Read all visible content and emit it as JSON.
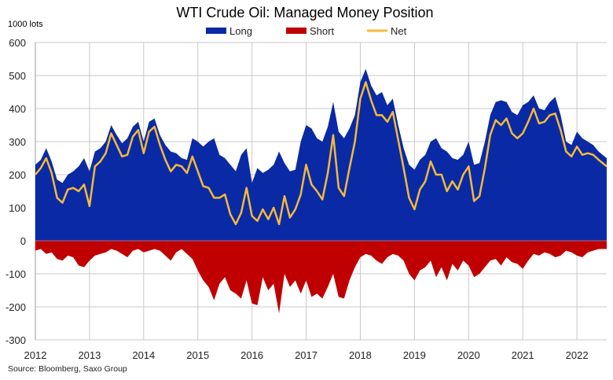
{
  "chart_data": {
    "type": "area",
    "title": "WTI Crude Oil: Managed Money Position",
    "ylabel": "1000 lots",
    "source": "Source: Bloomberg, Saxo Group",
    "ylim": [
      -300,
      600
    ],
    "yticks": [
      -300,
      -200,
      -100,
      0,
      100,
      200,
      300,
      400,
      500,
      600
    ],
    "xlim": [
      2012.0,
      2022.55
    ],
    "xticks": [
      2012,
      2013,
      2014,
      2015,
      2016,
      2017,
      2018,
      2019,
      2020,
      2021,
      2022
    ],
    "grid": true,
    "legend": "top-center",
    "series": [
      {
        "name": "Long",
        "type": "area",
        "color": "#0a2aa5",
        "x": [
          2012.0,
          2012.1,
          2012.2,
          2012.3,
          2012.4,
          2012.5,
          2012.6,
          2012.7,
          2012.8,
          2012.9,
          2013.0,
          2013.1,
          2013.2,
          2013.3,
          2013.4,
          2013.5,
          2013.6,
          2013.7,
          2013.8,
          2013.9,
          2014.0,
          2014.1,
          2014.2,
          2014.3,
          2014.4,
          2014.5,
          2014.6,
          2014.7,
          2014.8,
          2014.9,
          2015.0,
          2015.1,
          2015.2,
          2015.3,
          2015.4,
          2015.5,
          2015.6,
          2015.7,
          2015.8,
          2015.9,
          2016.0,
          2016.1,
          2016.2,
          2016.3,
          2016.4,
          2016.5,
          2016.6,
          2016.7,
          2016.8,
          2016.9,
          2017.0,
          2017.1,
          2017.2,
          2017.3,
          2017.4,
          2017.5,
          2017.6,
          2017.7,
          2017.8,
          2017.9,
          2018.0,
          2018.1,
          2018.2,
          2018.3,
          2018.4,
          2018.5,
          2018.6,
          2018.7,
          2018.8,
          2018.9,
          2019.0,
          2019.1,
          2019.2,
          2019.3,
          2019.4,
          2019.5,
          2019.6,
          2019.7,
          2019.8,
          2019.9,
          2020.0,
          2020.1,
          2020.2,
          2020.3,
          2020.4,
          2020.5,
          2020.6,
          2020.7,
          2020.8,
          2020.9,
          2021.0,
          2021.1,
          2021.2,
          2021.3,
          2021.4,
          2021.5,
          2021.6,
          2021.7,
          2021.8,
          2021.9,
          2022.0,
          2022.1,
          2022.2,
          2022.3,
          2022.4,
          2022.55
        ],
        "values": [
          230,
          245,
          280,
          240,
          185,
          175,
          200,
          210,
          225,
          250,
          210,
          270,
          280,
          300,
          350,
          320,
          295,
          310,
          345,
          360,
          300,
          360,
          370,
          320,
          290,
          270,
          265,
          250,
          245,
          310,
          300,
          285,
          300,
          310,
          260,
          250,
          230,
          210,
          260,
          280,
          175,
          220,
          205,
          215,
          230,
          270,
          235,
          210,
          215,
          300,
          350,
          340,
          310,
          300,
          345,
          420,
          330,
          310,
          340,
          380,
          480,
          520,
          470,
          440,
          450,
          410,
          430,
          350,
          280,
          230,
          215,
          245,
          260,
          300,
          310,
          280,
          270,
          250,
          245,
          260,
          300,
          230,
          235,
          300,
          380,
          420,
          425,
          420,
          390,
          380,
          410,
          420,
          440,
          400,
          395,
          420,
          435,
          380,
          300,
          290,
          330,
          310,
          300,
          290,
          270,
          250
        ]
      },
      {
        "name": "Short",
        "type": "area",
        "color": "#c00000",
        "x": [
          2012.0,
          2012.1,
          2012.2,
          2012.3,
          2012.4,
          2012.5,
          2012.6,
          2012.7,
          2012.8,
          2012.9,
          2013.0,
          2013.1,
          2013.2,
          2013.3,
          2013.4,
          2013.5,
          2013.6,
          2013.7,
          2013.8,
          2013.9,
          2014.0,
          2014.1,
          2014.2,
          2014.3,
          2014.4,
          2014.5,
          2014.6,
          2014.7,
          2014.8,
          2014.9,
          2015.0,
          2015.1,
          2015.2,
          2015.3,
          2015.4,
          2015.5,
          2015.6,
          2015.7,
          2015.8,
          2015.9,
          2016.0,
          2016.1,
          2016.2,
          2016.3,
          2016.4,
          2016.5,
          2016.6,
          2016.7,
          2016.8,
          2016.9,
          2017.0,
          2017.1,
          2017.2,
          2017.3,
          2017.4,
          2017.5,
          2017.6,
          2017.7,
          2017.8,
          2017.9,
          2018.0,
          2018.1,
          2018.2,
          2018.3,
          2018.4,
          2018.5,
          2018.6,
          2018.7,
          2018.8,
          2018.9,
          2019.0,
          2019.1,
          2019.2,
          2019.3,
          2019.4,
          2019.5,
          2019.6,
          2019.7,
          2019.8,
          2019.9,
          2020.0,
          2020.1,
          2020.2,
          2020.3,
          2020.4,
          2020.5,
          2020.6,
          2020.7,
          2020.8,
          2020.9,
          2021.0,
          2021.1,
          2021.2,
          2021.3,
          2021.4,
          2021.5,
          2021.6,
          2021.7,
          2021.8,
          2021.9,
          2022.0,
          2022.1,
          2022.2,
          2022.3,
          2022.4,
          2022.55
        ],
        "values": [
          -30,
          -25,
          -40,
          -35,
          -55,
          -60,
          -45,
          -50,
          -75,
          -80,
          -60,
          -45,
          -40,
          -35,
          -25,
          -30,
          -40,
          -50,
          -30,
          -25,
          -35,
          -30,
          -25,
          -30,
          -45,
          -60,
          -35,
          -25,
          -40,
          -55,
          -90,
          -120,
          -140,
          -180,
          -130,
          -110,
          -150,
          -160,
          -175,
          -120,
          -190,
          -195,
          -110,
          -150,
          -130,
          -220,
          -100,
          -140,
          -120,
          -160,
          -120,
          -170,
          -160,
          -175,
          -140,
          -100,
          -170,
          -175,
          -120,
          -80,
          -50,
          -40,
          -45,
          -60,
          -70,
          -50,
          -40,
          -45,
          -60,
          -100,
          -120,
          -90,
          -80,
          -60,
          -110,
          -80,
          -120,
          -70,
          -90,
          -60,
          -75,
          -110,
          -100,
          -80,
          -60,
          -55,
          -75,
          -50,
          -65,
          -70,
          -85,
          -60,
          -40,
          -45,
          -35,
          -40,
          -50,
          -45,
          -30,
          -35,
          -45,
          -50,
          -35,
          -30,
          -25,
          -25
        ]
      },
      {
        "name": "Net",
        "type": "line",
        "color": "#f5b93a",
        "x": [
          2012.0,
          2012.1,
          2012.2,
          2012.3,
          2012.4,
          2012.5,
          2012.6,
          2012.7,
          2012.8,
          2012.9,
          2013.0,
          2013.1,
          2013.2,
          2013.3,
          2013.4,
          2013.5,
          2013.6,
          2013.7,
          2013.8,
          2013.9,
          2014.0,
          2014.1,
          2014.2,
          2014.3,
          2014.4,
          2014.5,
          2014.6,
          2014.7,
          2014.8,
          2014.9,
          2015.0,
          2015.1,
          2015.2,
          2015.3,
          2015.4,
          2015.5,
          2015.6,
          2015.7,
          2015.8,
          2015.9,
          2016.0,
          2016.1,
          2016.2,
          2016.3,
          2016.4,
          2016.5,
          2016.6,
          2016.7,
          2016.8,
          2016.9,
          2017.0,
          2017.1,
          2017.2,
          2017.3,
          2017.4,
          2017.5,
          2017.6,
          2017.7,
          2017.8,
          2017.9,
          2018.0,
          2018.1,
          2018.2,
          2018.3,
          2018.4,
          2018.5,
          2018.6,
          2018.7,
          2018.8,
          2018.9,
          2019.0,
          2019.1,
          2019.2,
          2019.3,
          2019.4,
          2019.5,
          2019.6,
          2019.7,
          2019.8,
          2019.9,
          2020.0,
          2020.1,
          2020.2,
          2020.3,
          2020.4,
          2020.5,
          2020.6,
          2020.7,
          2020.8,
          2020.9,
          2021.0,
          2021.1,
          2021.2,
          2021.3,
          2021.4,
          2021.5,
          2021.6,
          2021.7,
          2021.8,
          2021.9,
          2022.0,
          2022.1,
          2022.2,
          2022.3,
          2022.4,
          2022.55
        ],
        "values": [
          200,
          220,
          250,
          205,
          130,
          115,
          155,
          160,
          150,
          170,
          105,
          225,
          240,
          265,
          325,
          290,
          255,
          260,
          315,
          335,
          265,
          330,
          345,
          290,
          245,
          210,
          230,
          225,
          205,
          255,
          210,
          165,
          160,
          130,
          130,
          140,
          80,
          50,
          85,
          160,
          75,
          60,
          95,
          65,
          100,
          50,
          135,
          70,
          95,
          140,
          230,
          170,
          150,
          125,
          205,
          320,
          160,
          135,
          220,
          300,
          430,
          480,
          425,
          380,
          380,
          360,
          390,
          305,
          220,
          130,
          95,
          155,
          180,
          240,
          200,
          200,
          150,
          180,
          155,
          200,
          225,
          120,
          135,
          220,
          320,
          365,
          350,
          370,
          325,
          310,
          325,
          360,
          400,
          355,
          360,
          380,
          385,
          335,
          270,
          255,
          285,
          260,
          265,
          260,
          245,
          225
        ]
      }
    ]
  }
}
